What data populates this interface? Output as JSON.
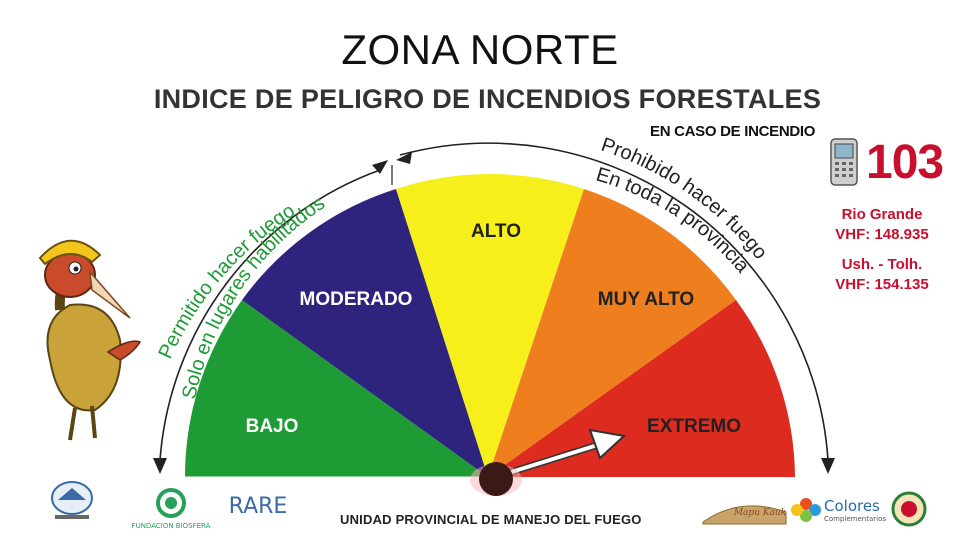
{
  "header": {
    "title": "ZONA NORTE",
    "subtitle": "INDICE DE PELIGRO DE INCENDIOS FORESTALES"
  },
  "emergency": {
    "label": "EN CASO DE INCENDIO",
    "number": "103",
    "phone_icon": "mobile-phone-icon",
    "lines": [
      "Rio Grande",
      "VHF: 148.935",
      "Ush. - Tolh.",
      "VHF: 154.135"
    ]
  },
  "gauge": {
    "levels": [
      {
        "label": "BAJO",
        "color": "#1e9b35"
      },
      {
        "label": "MODERADO",
        "color": "#2e237d"
      },
      {
        "label": "ALTO",
        "color": "#f6ef1c"
      },
      {
        "label": "MUY ALTO",
        "color": "#ee7e1e"
      },
      {
        "label": "EXTREMO",
        "color": "#dd2b1f"
      }
    ],
    "current_level": "EXTREMO",
    "left_note": {
      "line1": "Permitido hacer fuego",
      "line2": "Solo en lugares habilitados",
      "color": "#1e9b35"
    },
    "right_note": {
      "line1": "Prohibido hacer fuego",
      "line2": "En toda la provincia",
      "color": "#222222"
    }
  },
  "footer": {
    "text": "UNIDAD PROVINCIAL DE MANEJO DEL FUEGO"
  },
  "logos": {
    "fundacion": "FUNDACION BIOSFERA",
    "rare": "RARE",
    "colores": "Colores",
    "colores_sub": "Complementarios"
  }
}
